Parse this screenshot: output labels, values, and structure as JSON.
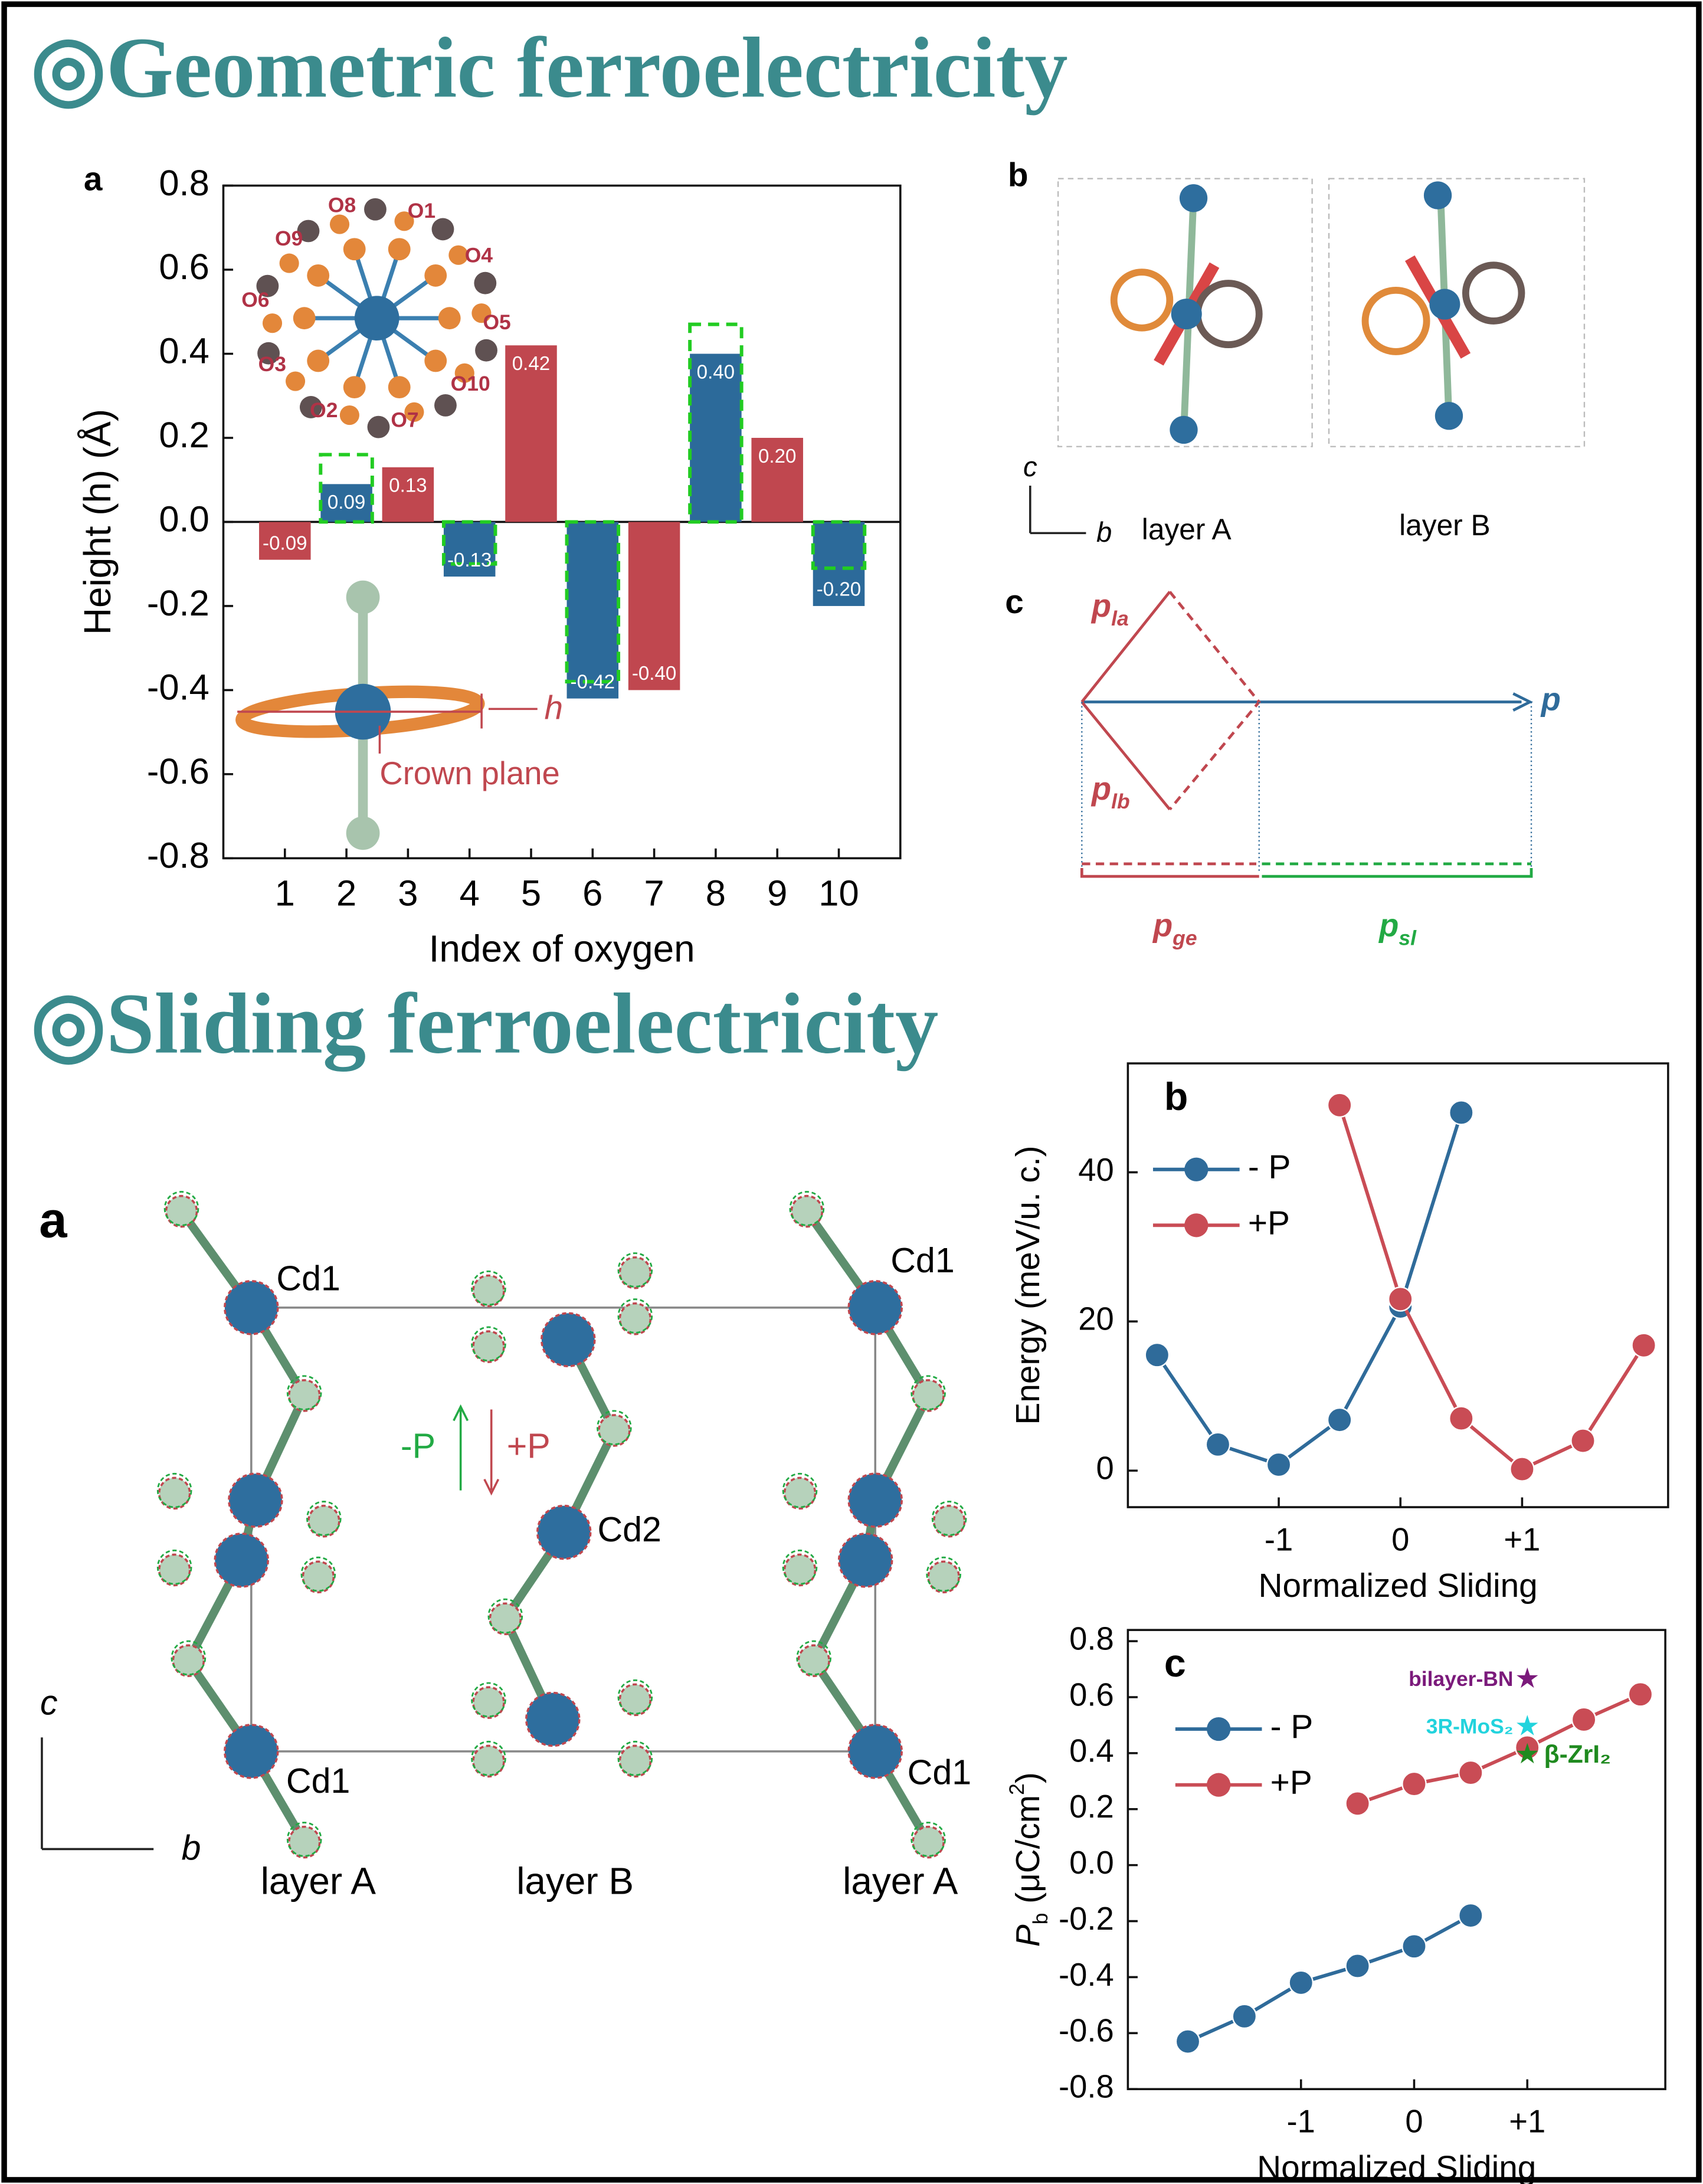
{
  "headings": [
    "◎Geometric ferroelectricity",
    "◎Sliding ferroelectricity"
  ],
  "chart_data": [
    {
      "type": "bar",
      "panel_label": "a",
      "categories": [
        1,
        2,
        3,
        4,
        5,
        6,
        7,
        8,
        9,
        10
      ],
      "values": [
        -0.09,
        0.09,
        0.13,
        -0.13,
        0.42,
        -0.42,
        -0.4,
        0.4,
        0.2,
        -0.2
      ],
      "value_labels": [
        "-0.09",
        "0.09",
        "0.13",
        "-0.13",
        "0.42",
        "-0.42",
        "-0.40",
        "0.40",
        "0.20",
        "-0.20"
      ],
      "colors": [
        "#c0474f",
        "#2c6a9a",
        "#c0474f",
        "#2c6a9a",
        "#c0474f",
        "#2c6a9a",
        "#c0474f",
        "#2c6a9a",
        "#c0474f",
        "#2c6a9a"
      ],
      "reference_values": [
        null,
        0.16,
        null,
        -0.1,
        null,
        -0.38,
        null,
        0.47,
        null,
        -0.11
      ],
      "reference_color": "#22cc22",
      "ylim": [
        -0.8,
        0.8
      ],
      "yticks": [
        -0.8,
        -0.6,
        -0.4,
        -0.2,
        {
          "value": 0,
          "label": "0.0"
        },
        0.2,
        0.4,
        0.6,
        0.8
      ],
      "xlabel": "Index of oxygen",
      "ylabel": "Height (h) (Å)",
      "annotations": {
        "oxygen_labels": [
          "O8",
          "O1",
          "O9",
          "O4",
          "O6",
          "O5",
          "O3",
          "O10",
          "O2",
          "O7"
        ],
        "height": "h",
        "plane": "Crown plane"
      }
    },
    {
      "type": "line",
      "panel_label": "b",
      "series": [
        {
          "name": "- P",
          "color": "#2f6b9a",
          "x": [
            -2,
            -1.5,
            -1,
            -0.5,
            0,
            0.5
          ],
          "values": [
            15.5,
            3.5,
            0.8,
            6.8,
            22,
            48
          ]
        },
        {
          "name": "+P",
          "color": "#c94c55",
          "x": [
            -0.5,
            0,
            0.5,
            1,
            1.5,
            2
          ],
          "values": [
            49,
            23,
            7,
            0.2,
            4,
            16.8
          ]
        }
      ],
      "xlim": [
        -2.24,
        2.2
      ],
      "xticks": [
        -1,
        0,
        {
          "value": 1,
          "label": "+1"
        }
      ],
      "ylim": [
        -4.9,
        54.6
      ],
      "yticks": [
        0,
        20,
        40
      ],
      "xlabel": "Normalized Sliding",
      "ylabel": "Energy (meV/u. c.)",
      "legend": "upper left"
    },
    {
      "type": "line",
      "panel_label": "c",
      "series": [
        {
          "name": "- P",
          "color": "#2f6b9a",
          "x": [
            -2,
            -1.5,
            -1,
            -0.5,
            0,
            0.5
          ],
          "values": [
            -0.63,
            -0.54,
            -0.42,
            -0.36,
            -0.29,
            -0.18
          ]
        },
        {
          "name": "+P",
          "color": "#c94c55",
          "x": [
            -0.5,
            0,
            0.5,
            1,
            1.5,
            2
          ],
          "values": [
            0.22,
            0.29,
            0.33,
            0.42,
            0.52,
            0.61
          ]
        }
      ],
      "stars": [
        {
          "label": "bilayer-BN",
          "x": 1,
          "value": 0.66,
          "color": "#7b1a7b"
        },
        {
          "label": "3R-MoS₂",
          "x": 1,
          "value": 0.49,
          "color": "#22d3dd"
        },
        {
          "label": "β-ZrI₂",
          "x": 1,
          "value": 0.39,
          "color": "#1f8a1f"
        }
      ],
      "xlim": [
        -2.53,
        2.22
      ],
      "xticks": [
        -1,
        0,
        {
          "value": 1,
          "label": "+1"
        }
      ],
      "ylim": [
        -0.8,
        0.84
      ],
      "yticks": [
        -0.8,
        -0.6,
        -0.4,
        -0.2,
        {
          "value": 0,
          "label": "0.0"
        },
        0.2,
        0.4,
        0.6,
        0.8
      ],
      "xlabel": "Normalized Sliding",
      "ylabel_parts": [
        "P",
        "b",
        " (μC/cm",
        "2",
        ")"
      ],
      "legend": "upper left"
    }
  ],
  "geometric_b": {
    "label": "b",
    "axis_c": "c",
    "axis_b": "b",
    "layers": [
      "layer A",
      "layer B"
    ]
  },
  "geometric_c": {
    "label": "c",
    "vectors": [
      {
        "symbol": "p",
        "subscript": "la"
      },
      {
        "symbol": "p",
        "subscript": "lb"
      },
      {
        "symbol": "p"
      },
      {
        "symbol": "p",
        "subscript": "ge"
      },
      {
        "symbol": "p",
        "subscript": "sl"
      }
    ]
  },
  "sliding_a": {
    "label": "a",
    "atoms": [
      "Cd1",
      "Cd1",
      "Cd2",
      "Cd1",
      "Cd1"
    ],
    "polarization": [
      "-P",
      "+P"
    ],
    "axis_c": "c",
    "axis_b": "b",
    "layers": [
      "layer A",
      "layer B",
      "layer A"
    ]
  }
}
